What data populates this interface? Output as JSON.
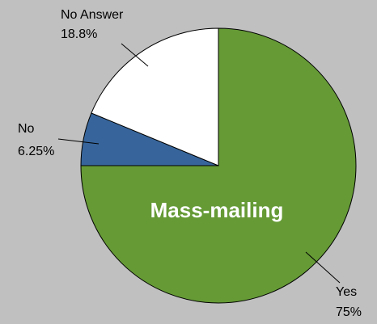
{
  "chart_data": {
    "type": "pie",
    "categories": [
      "Yes",
      "No",
      "No Answer"
    ],
    "values": [
      75,
      6.25,
      18.75
    ],
    "value_labels": [
      "75%",
      "6.25%",
      "18.8%"
    ],
    "colors": [
      "#659a35",
      "#37659b",
      "#ffffff"
    ],
    "annotation": "Mass-mailing"
  }
}
